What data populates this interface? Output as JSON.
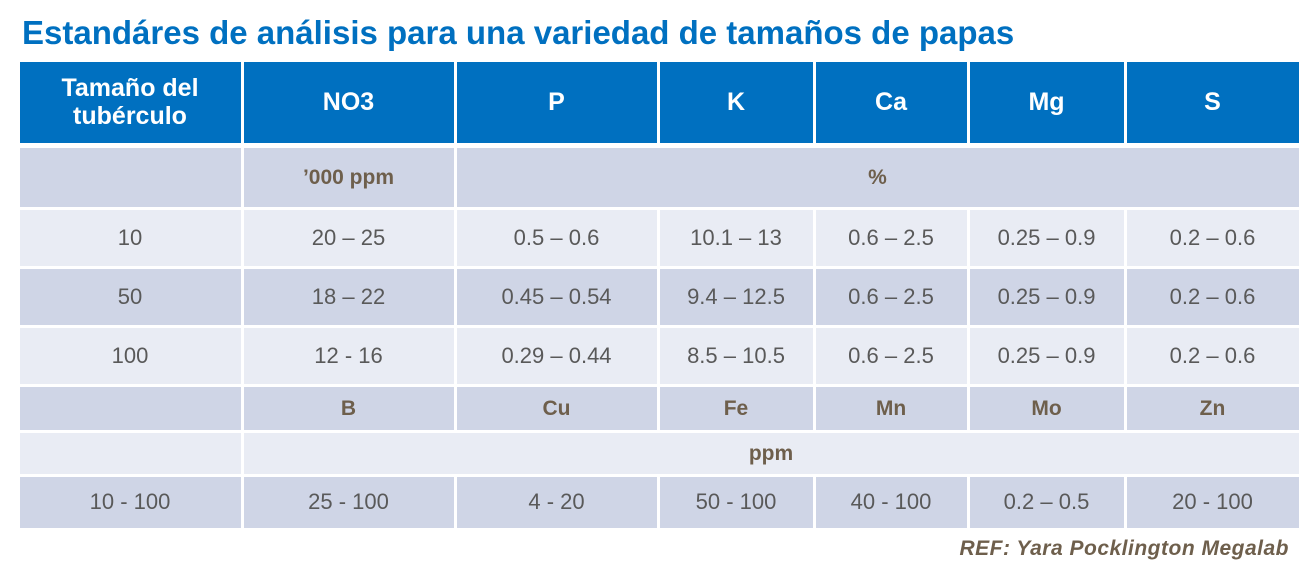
{
  "title": "Estandáres de análisis para una variedad de tamaños de papas",
  "table": {
    "header": [
      "Tamaño del tubérculo",
      "NO3",
      "P",
      "K",
      "Ca",
      "Mg",
      "S"
    ],
    "units_1": [
      "’000 ppm",
      "%"
    ],
    "rows": [
      [
        "10",
        "20 – 25",
        "0.5 – 0.6",
        "10.1 – 13",
        "0.6 – 2.5",
        "0.25 – 0.9",
        "0.2 – 0.6"
      ],
      [
        "50",
        "18 – 22",
        "0.45 – 0.54",
        "9.4 – 12.5",
        "0.6 – 2.5",
        "0.25 – 0.9",
        "0.2 – 0.6"
      ],
      [
        "100",
        "12 - 16",
        "0.29 – 0.44",
        "8.5 – 10.5",
        "0.6 – 2.5",
        "0.25 – 0.9",
        "0.2 – 0.6"
      ]
    ],
    "micro_header": [
      "B",
      "Cu",
      "Fe",
      "Mn",
      "Mo",
      "Zn"
    ],
    "units_2": "ppm",
    "micro_row": [
      "10 - 100",
      "25 - 100",
      "4 - 20",
      "50 - 100",
      "40 - 100",
      "0.2 – 0.5",
      "20 - 100"
    ]
  },
  "ref": "REF: Yara Pocklington  Megalab"
}
